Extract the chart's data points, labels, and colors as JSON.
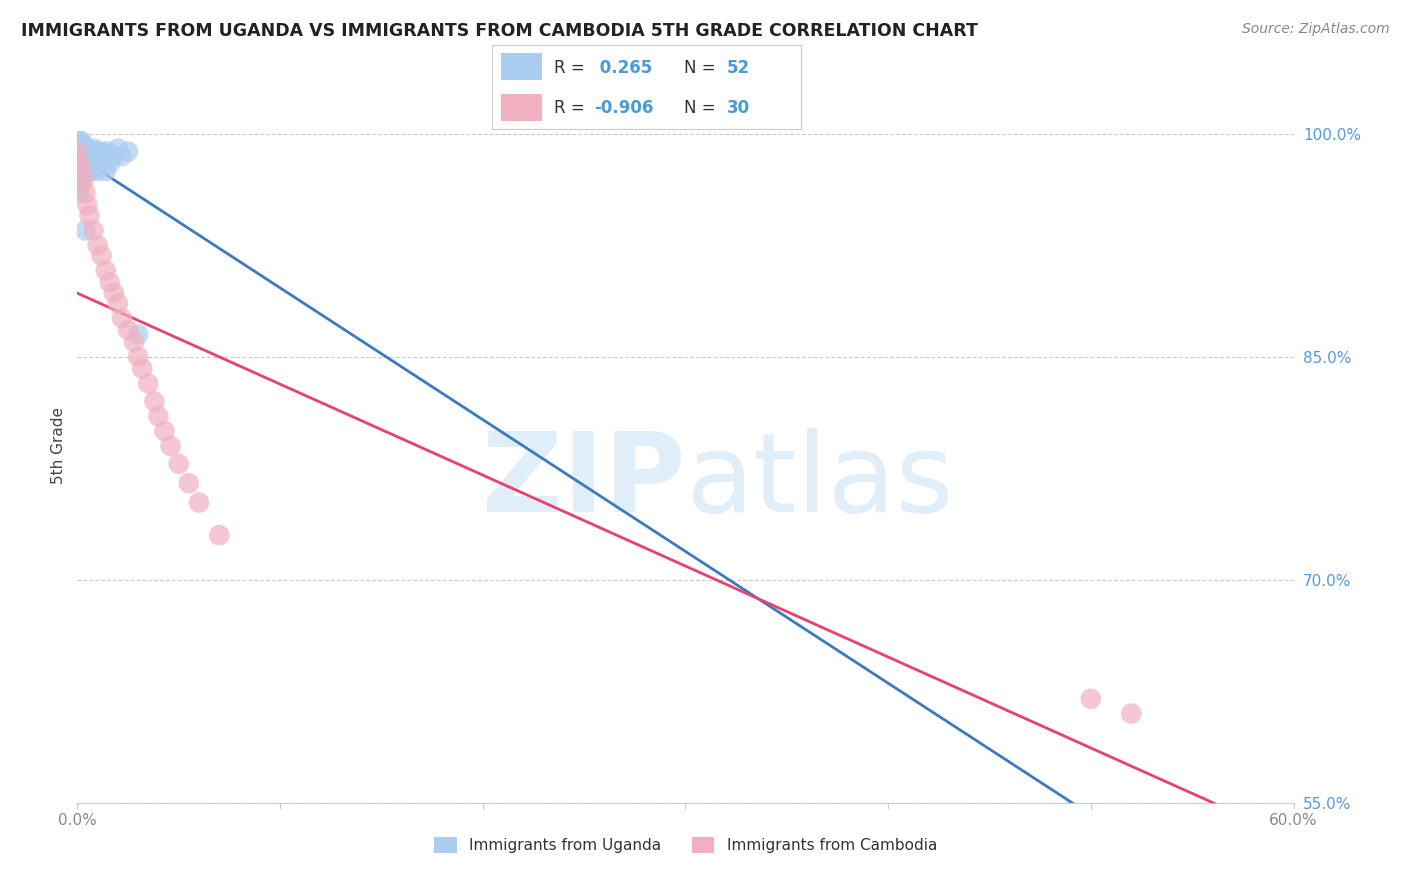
{
  "title": "IMMIGRANTS FROM UGANDA VS IMMIGRANTS FROM CAMBODIA 5TH GRADE CORRELATION CHART",
  "source": "Source: ZipAtlas.com",
  "ylabel": "5th Grade",
  "xlim": [
    0.0,
    0.6
  ],
  "ylim": [
    0.565,
    1.03
  ],
  "r_uganda": 0.265,
  "n_uganda": 52,
  "r_cambodia": -0.906,
  "n_cambodia": 30,
  "legend_label_1": "Immigrants from Uganda",
  "legend_label_2": "Immigrants from Cambodia",
  "color_uganda": "#aaccf0",
  "color_cambodia": "#f0b0c0",
  "line_color_uganda": "#3a7abf",
  "line_color_cambodia": "#e84070",
  "watermark_zip": "ZIP",
  "watermark_atlas": "atlas",
  "uganda_x": [
    0.0,
    0.0,
    0.0,
    0.001,
    0.001,
    0.001,
    0.001,
    0.001,
    0.001,
    0.001,
    0.001,
    0.001,
    0.002,
    0.002,
    0.002,
    0.002,
    0.002,
    0.002,
    0.002,
    0.003,
    0.003,
    0.003,
    0.003,
    0.003,
    0.004,
    0.004,
    0.004,
    0.004,
    0.004,
    0.005,
    0.005,
    0.005,
    0.006,
    0.006,
    0.007,
    0.007,
    0.008,
    0.009,
    0.009,
    0.01,
    0.01,
    0.011,
    0.012,
    0.013,
    0.014,
    0.015,
    0.016,
    0.018,
    0.02,
    0.022,
    0.025,
    0.03
  ],
  "uganda_y": [
    0.99,
    0.992,
    0.988,
    0.995,
    0.985,
    0.98,
    0.978,
    0.975,
    0.97,
    0.968,
    0.965,
    0.96,
    0.995,
    0.99,
    0.985,
    0.982,
    0.98,
    0.975,
    0.97,
    0.992,
    0.988,
    0.985,
    0.982,
    0.975,
    0.99,
    0.985,
    0.98,
    0.978,
    0.935,
    0.99,
    0.985,
    0.98,
    0.985,
    0.975,
    0.985,
    0.975,
    0.99,
    0.985,
    0.98,
    0.988,
    0.975,
    0.985,
    0.988,
    0.985,
    0.975,
    0.988,
    0.98,
    0.985,
    0.99,
    0.985,
    0.988,
    0.865
  ],
  "cambodia_x": [
    0.0,
    0.001,
    0.002,
    0.003,
    0.004,
    0.005,
    0.006,
    0.008,
    0.01,
    0.012,
    0.014,
    0.016,
    0.018,
    0.02,
    0.022,
    0.025,
    0.028,
    0.03,
    0.032,
    0.035,
    0.038,
    0.04,
    0.043,
    0.046,
    0.05,
    0.055,
    0.06,
    0.07,
    0.5,
    0.52
  ],
  "cambodia_y": [
    0.988,
    0.98,
    0.975,
    0.968,
    0.96,
    0.952,
    0.945,
    0.935,
    0.925,
    0.918,
    0.908,
    0.9,
    0.893,
    0.886,
    0.876,
    0.868,
    0.86,
    0.85,
    0.842,
    0.832,
    0.82,
    0.81,
    0.8,
    0.79,
    0.778,
    0.765,
    0.752,
    0.73,
    0.62,
    0.61
  ],
  "xticks": [
    0.0,
    0.1,
    0.2,
    0.3,
    0.4,
    0.5,
    0.6
  ],
  "xtick_labels": [
    "0.0%",
    "",
    "",
    "",
    "",
    "",
    "60.0%"
  ],
  "yticks": [
    1.0,
    0.85,
    0.7,
    0.55
  ],
  "ytick_labels": [
    "100.0%",
    "85.0%",
    "70.0%",
    "55.0%"
  ],
  "grid_color": "#cccccc",
  "background_color": "#ffffff",
  "title_color": "#222222",
  "source_color": "#888888",
  "ylabel_color": "#444444",
  "yticklabel_color": "#5599dd",
  "xticklabel_color": "#888888"
}
